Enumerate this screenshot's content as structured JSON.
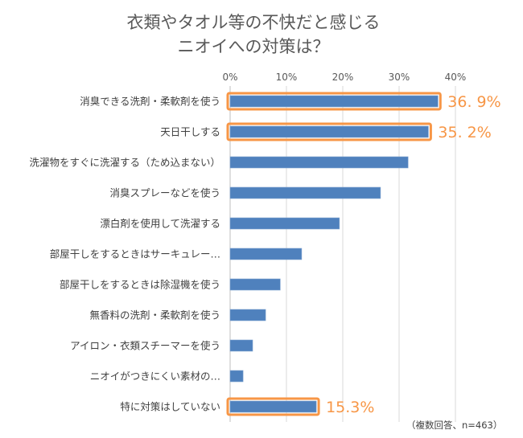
{
  "chart_data": {
    "type": "bar",
    "orientation": "horizontal",
    "title": [
      "衣類やタオル等の不快だと感じる",
      "ニオイへの対策は？"
    ],
    "categories": [
      "消臭できる洗剤・柔軟剤を使う",
      "天日干しする",
      "洗濯物をすぐに洗濯する（ため込まない）",
      "消臭スプレーなどを使う",
      "漂白剤を使用して洗濯する",
      "部屋干しをするときはサーキュレー…",
      "部屋干しをするときは除湿機を使う",
      "無香料の洗剤・柔軟剤を使う",
      "アイロン・衣類スチーマーを使う",
      "ニオイがつきにくい素材の…",
      "特に対策はしていない"
    ],
    "values": [
      36.9,
      35.2,
      31.6,
      26.7,
      19.4,
      12.7,
      8.9,
      6.3,
      4.0,
      2.3,
      15.3
    ],
    "highlighted": [
      true,
      true,
      false,
      false,
      false,
      false,
      false,
      false,
      false,
      false,
      true
    ],
    "data_labels": [
      "36. 9%",
      "35. 2%",
      "",
      "",
      "",
      "",
      "",
      "",
      "",
      "",
      "15.3%"
    ],
    "xlim": [
      0,
      40
    ],
    "xticks": [
      "0%",
      "10%",
      "20%",
      "30%",
      "40%"
    ],
    "xtick_values": [
      0,
      10,
      20,
      30,
      40
    ],
    "xlabel": "",
    "ylabel": "",
    "grid": true,
    "note": "（複数回答、n=463）",
    "colors": {
      "bar": "#4F81BD",
      "highlight": "#F79646",
      "grid": "#D9D9D9"
    }
  }
}
